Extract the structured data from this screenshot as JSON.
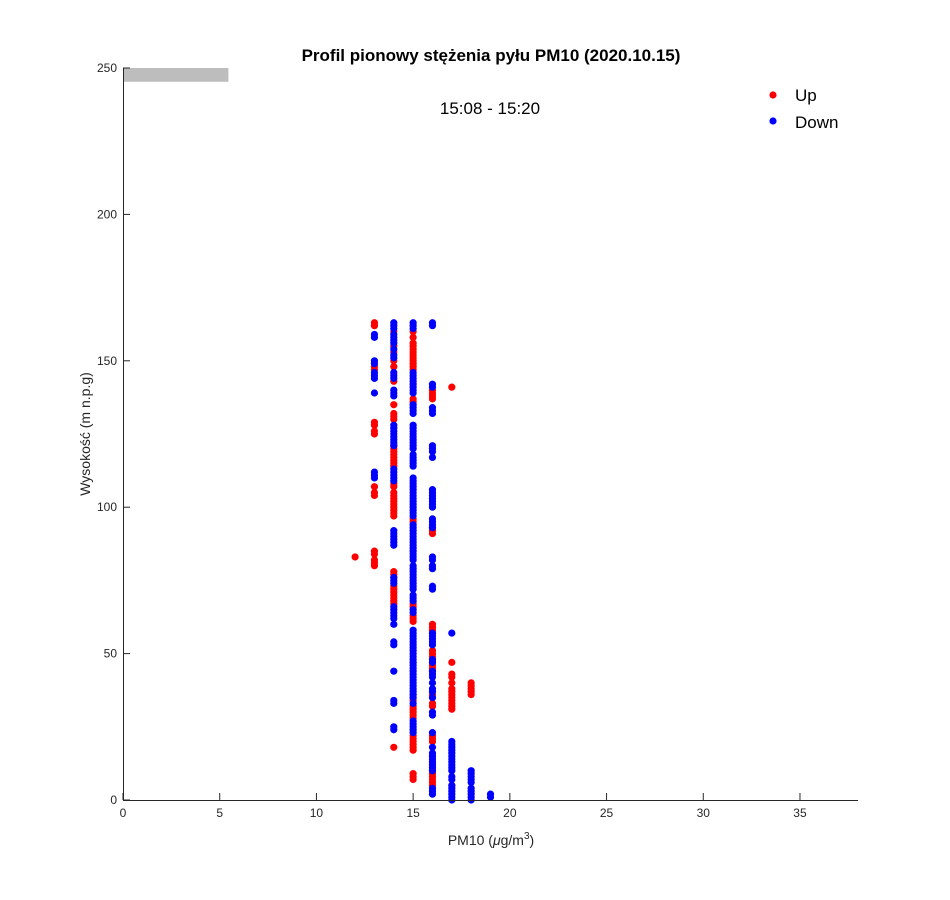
{
  "chart_data": {
    "type": "scatter",
    "title": "Profil pionowy stężenia pyłu PM10 (2020.10.15)",
    "subtitle": "15:08 - 15:20",
    "xlabel": {
      "main": "PM10 (",
      "mu": "μ",
      "unit": "g/m",
      "sup": "3",
      "end": ")"
    },
    "ylabel": "Wysokość (m n.p.g)",
    "xlim": [
      0,
      38
    ],
    "ylim": [
      0,
      250
    ],
    "xticks": [
      "0",
      "5",
      "10",
      "15",
      "20",
      "25",
      "30",
      "35"
    ],
    "yticks": [
      "0",
      "50",
      "100",
      "150",
      "200",
      "250"
    ],
    "grid": false,
    "legend_position": "top-right",
    "reference_bar": {
      "x": [
        0,
        5.45
      ],
      "y": [
        245.3,
        250
      ],
      "color": "#bdbdbd"
    },
    "series": [
      {
        "name": "Up",
        "color": "#ff0000",
        "points_by_x": [
          [
            12,
            [
              83
            ]
          ],
          [
            13,
            [
              163,
              162,
              148,
              147,
              129,
              128,
              126,
              125,
              107,
              105,
              104,
              85,
              84,
              82,
              81,
              80
            ]
          ],
          [
            14,
            [
              160,
              155,
              153,
              150,
              148,
              143,
              135,
              132,
              131,
              130,
              121,
              120,
              119,
              118,
              117,
              116,
              115,
              114,
              108,
              107,
              105,
              104,
              103,
              102,
              101,
              100,
              99,
              98,
              97,
              78,
              77,
              76,
              73,
              72,
              71,
              70,
              69,
              68,
              67,
              18
            ]
          ],
          [
            15,
            [
              160,
              158,
              156,
              155,
              154,
              153,
              152,
              151,
              150,
              149,
              148,
              147,
              137,
              136,
              96,
              95,
              67,
              66,
              63,
              62,
              61,
              47,
              36,
              35,
              34,
              32,
              31,
              30,
              29,
              28,
              22,
              21,
              20,
              19,
              18,
              17,
              9,
              8,
              7
            ]
          ],
          [
            16,
            [
              140,
              139,
              138,
              137,
              105,
              104,
              103,
              93,
              92,
              91,
              60,
              59,
              58,
              57,
              51,
              50,
              49,
              48,
              47,
              46,
              45,
              44,
              36,
              35,
              33,
              32,
              22,
              21,
              20,
              15,
              14,
              13,
              12,
              11,
              10,
              9,
              8,
              7,
              6,
              5
            ]
          ],
          [
            17,
            [
              141,
              47,
              43,
              42,
              40,
              38,
              37,
              36,
              35,
              34,
              33,
              32,
              31,
              5
            ]
          ],
          [
            18,
            [
              40,
              39,
              38,
              37,
              36
            ]
          ]
        ]
      },
      {
        "name": "Down",
        "color": "#0000ff",
        "points_by_x": [
          [
            13,
            [
              159,
              158,
              150,
              149,
              146,
              145,
              144,
              139,
              112,
              111,
              110
            ]
          ],
          [
            14,
            [
              163,
              162,
              161,
              159,
              158,
              157,
              156,
              154,
              152,
              151,
              146,
              145,
              144,
              140,
              139,
              138,
              128,
              127,
              126,
              125,
              124,
              123,
              122,
              121,
              113,
              112,
              111,
              110,
              109,
              92,
              91,
              90,
              89,
              88,
              87,
              76,
              75,
              74,
              66,
              65,
              64,
              63,
              62,
              60,
              54,
              53,
              44,
              34,
              33,
              25,
              24
            ]
          ],
          [
            15,
            [
              163,
              162,
              161,
              146,
              145,
              144,
              143,
              142,
              141,
              140,
              139,
              135,
              134,
              133,
              132,
              128,
              127,
              126,
              125,
              124,
              123,
              122,
              121,
              120,
              118,
              117,
              116,
              115,
              114,
              110,
              109,
              108,
              107,
              106,
              105,
              104,
              103,
              102,
              101,
              100,
              99,
              98,
              97,
              94,
              93,
              92,
              91,
              90,
              89,
              88,
              87,
              86,
              85,
              84,
              83,
              82,
              80,
              79,
              78,
              77,
              76,
              75,
              74,
              73,
              72,
              70,
              69,
              68,
              65,
              64,
              58,
              57,
              56,
              55,
              54,
              53,
              52,
              51,
              50,
              49,
              48,
              47,
              46,
              45,
              44,
              43,
              42,
              41,
              40,
              39,
              38,
              37,
              36,
              35,
              33,
              27,
              26,
              25,
              24,
              23
            ]
          ],
          [
            16,
            [
              163,
              162,
              142,
              141,
              134,
              133,
              132,
              121,
              120,
              119,
              117,
              106,
              105,
              104,
              103,
              102,
              101,
              100,
              96,
              95,
              94,
              93,
              83,
              82,
              80,
              79,
              73,
              72,
              57,
              56,
              55,
              54,
              53,
              48,
              47,
              44,
              43,
              42,
              40,
              38,
              37,
              35,
              30,
              29,
              23,
              18,
              16,
              15,
              14,
              13,
              12,
              11,
              10,
              4,
              3,
              2
            ]
          ],
          [
            17,
            [
              57,
              20,
              19,
              18,
              17,
              16,
              15,
              14,
              13,
              12,
              11,
              10,
              8,
              7,
              5,
              4,
              3,
              2,
              1,
              0
            ]
          ],
          [
            18,
            [
              10,
              9,
              8,
              7,
              6,
              4,
              3,
              2,
              1,
              0
            ]
          ],
          [
            19,
            [
              2,
              1
            ]
          ]
        ]
      }
    ]
  }
}
